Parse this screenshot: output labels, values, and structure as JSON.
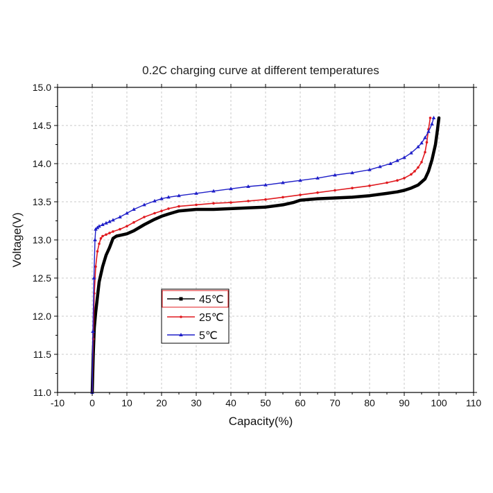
{
  "chart_data": {
    "type": "line",
    "title": "0.2C charging curve at different temperatures",
    "xlabel": "Capacity(%)",
    "ylabel": "Voltage(V)",
    "xlim": [
      -10,
      110
    ],
    "ylim": [
      11.0,
      15.0
    ],
    "xticks": [
      "-10",
      "0",
      "10",
      "20",
      "30",
      "40",
      "50",
      "60",
      "70",
      "80",
      "90",
      "100",
      "110"
    ],
    "yticks": [
      "11.0",
      "11.5",
      "12.0",
      "12.5",
      "13.0",
      "13.5",
      "14.0",
      "14.5",
      "15.0"
    ],
    "grid": true,
    "legend_position": "left-lower-middle",
    "series": [
      {
        "name": "45℃",
        "color": "#000000",
        "marker": "square",
        "x": [
          0,
          0.3,
          0.6,
          1,
          1.5,
          2,
          3,
          4,
          5,
          6,
          7,
          8,
          10,
          12,
          15,
          18,
          20,
          22,
          25,
          30,
          35,
          40,
          45,
          50,
          55,
          58,
          60,
          65,
          70,
          75,
          80,
          85,
          88,
          90,
          92,
          94,
          96,
          97,
          98,
          99,
          99.6,
          100
        ],
        "y": [
          11.0,
          11.5,
          11.85,
          12.05,
          12.25,
          12.45,
          12.65,
          12.8,
          12.9,
          13.02,
          13.05,
          13.06,
          13.08,
          13.12,
          13.2,
          13.27,
          13.31,
          13.34,
          13.38,
          13.4,
          13.4,
          13.41,
          13.42,
          13.43,
          13.46,
          13.49,
          13.52,
          13.54,
          13.55,
          13.56,
          13.58,
          13.61,
          13.63,
          13.65,
          13.68,
          13.72,
          13.8,
          13.9,
          14.05,
          14.25,
          14.45,
          14.6
        ]
      },
      {
        "name": "25℃",
        "color": "#e0191e",
        "marker": "dot",
        "x": [
          0,
          0.3,
          0.6,
          1,
          1.5,
          2,
          2.5,
          3,
          4,
          5,
          6,
          8,
          10,
          12,
          15,
          18,
          20,
          22,
          25,
          30,
          35,
          40,
          45,
          50,
          55,
          60,
          65,
          70,
          75,
          80,
          85,
          88,
          90,
          92,
          93,
          94,
          95,
          96,
          96.5,
          97,
          97.5
        ],
        "y": [
          11.0,
          11.7,
          12.3,
          12.65,
          12.85,
          12.95,
          13.02,
          13.05,
          13.07,
          13.09,
          13.11,
          13.14,
          13.18,
          13.23,
          13.3,
          13.35,
          13.38,
          13.41,
          13.44,
          13.46,
          13.48,
          13.49,
          13.51,
          13.53,
          13.56,
          13.59,
          13.62,
          13.65,
          13.68,
          13.71,
          13.75,
          13.78,
          13.81,
          13.86,
          13.9,
          13.95,
          14.02,
          14.15,
          14.28,
          14.45,
          14.6
        ]
      },
      {
        "name": "5℃",
        "color": "#1f1fc8",
        "marker": "triangle",
        "x": [
          0,
          0.2,
          0.5,
          0.8,
          1,
          1.5,
          2,
          3,
          4,
          5,
          6,
          8,
          10,
          12,
          15,
          18,
          20,
          22,
          25,
          30,
          35,
          40,
          45,
          50,
          55,
          60,
          65,
          70,
          75,
          80,
          83,
          86,
          88,
          90,
          92,
          94,
          95,
          96,
          97,
          98,
          98.5
        ],
        "y": [
          11.0,
          11.8,
          12.5,
          13.0,
          13.14,
          13.16,
          13.18,
          13.2,
          13.22,
          13.24,
          13.26,
          13.3,
          13.35,
          13.4,
          13.46,
          13.51,
          13.54,
          13.56,
          13.58,
          13.61,
          13.64,
          13.67,
          13.7,
          13.72,
          13.75,
          13.78,
          13.81,
          13.85,
          13.88,
          13.92,
          13.96,
          14.0,
          14.04,
          14.08,
          14.14,
          14.22,
          14.27,
          14.34,
          14.42,
          14.52,
          14.6
        ]
      }
    ]
  }
}
